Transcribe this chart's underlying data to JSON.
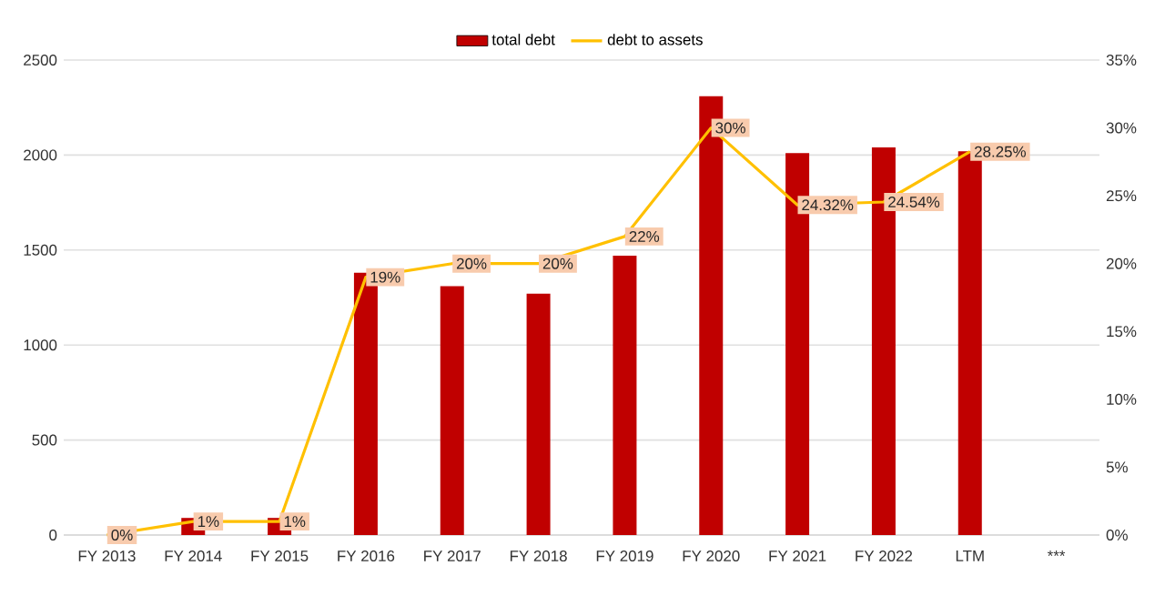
{
  "chart_data": {
    "type": "bar",
    "categories": [
      "FY 2013",
      "FY 2014",
      "FY 2015",
      "FY 2016",
      "FY 2017",
      "FY 2018",
      "FY 2019",
      "FY 2020",
      "FY 2021",
      "FY 2022",
      "LTM",
      "***"
    ],
    "series": [
      {
        "name": "total debt",
        "color": "#c00000",
        "values": [
          0,
          90,
          90,
          1380,
          1310,
          1270,
          1470,
          2310,
          2010,
          2040,
          2020,
          null
        ]
      },
      {
        "name": "debt to assets",
        "type": "line",
        "axis": "y2",
        "color": "#ffc000",
        "values": [
          0,
          1,
          1,
          19,
          20,
          20,
          22,
          30,
          24.32,
          24.54,
          28.25,
          null
        ],
        "value_labels": [
          "0%",
          "1%",
          "1%",
          "19%",
          "20%",
          "20%",
          "22%",
          "30%",
          "24.32%",
          "24.54%",
          "28.25%",
          null
        ]
      }
    ],
    "ylim": [
      0,
      2500
    ],
    "yticks": [
      0,
      500,
      1000,
      1500,
      2000,
      2500
    ],
    "y2lim": [
      0,
      35
    ],
    "y2ticks": [
      {
        "value": 0,
        "label": "0%"
      },
      {
        "value": 5,
        "label": "5%"
      },
      {
        "value": 10,
        "label": "10%"
      },
      {
        "value": 15,
        "label": "15%"
      },
      {
        "value": 20,
        "label": "20%"
      },
      {
        "value": 25,
        "label": "25%"
      },
      {
        "value": 30,
        "label": "30%"
      },
      {
        "value": 35,
        "label": "35%"
      }
    ],
    "grid": "y",
    "legend": "top",
    "marker": "none"
  }
}
